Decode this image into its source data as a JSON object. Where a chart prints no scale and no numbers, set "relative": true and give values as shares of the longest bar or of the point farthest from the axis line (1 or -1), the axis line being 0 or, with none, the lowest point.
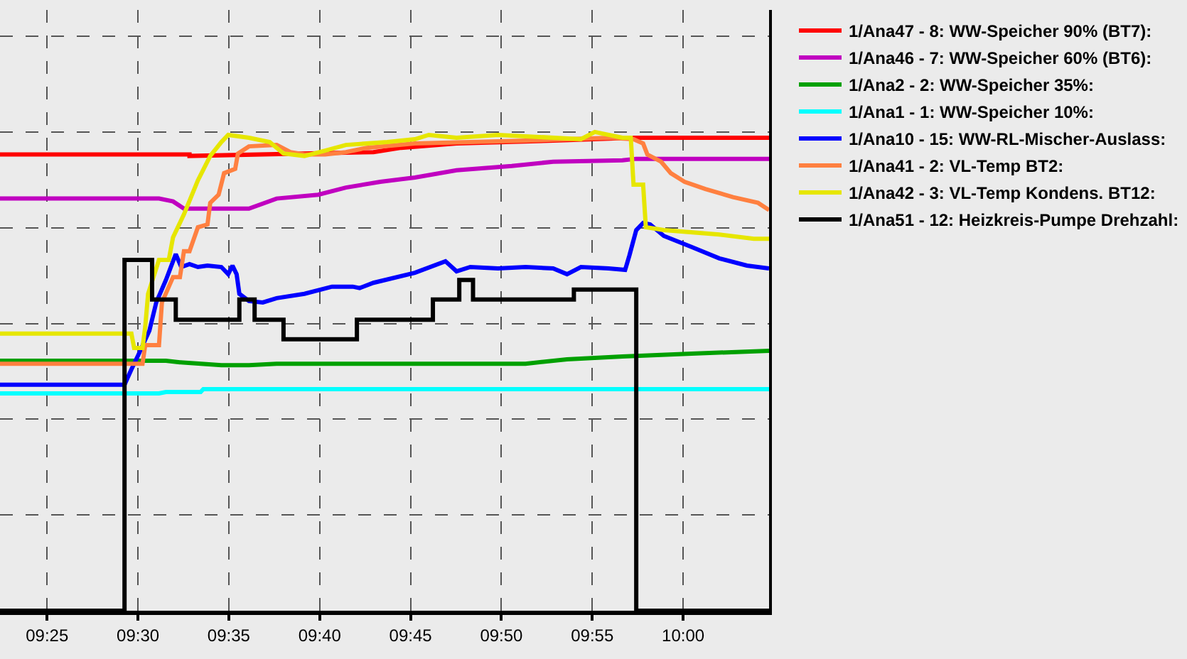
{
  "chart_data": {
    "type": "line",
    "relative": true,
    "grid": true,
    "legend": "top right",
    "xlim": [
      9.3735,
      10.0788
    ],
    "xticks": [
      {
        "value": 9.41667,
        "label": "09:25"
      },
      {
        "value": 9.5,
        "label": "09:30"
      },
      {
        "value": 9.58333,
        "label": "09:35"
      },
      {
        "value": 9.66667,
        "label": "09:40"
      },
      {
        "value": 9.75,
        "label": "09:45"
      },
      {
        "value": 9.83333,
        "label": "09:50"
      },
      {
        "value": 9.91667,
        "label": "09:55"
      },
      {
        "value": 10.0,
        "label": "10:00"
      }
    ],
    "series": [
      {
        "name": "1/Ana47 - 8: WW-Speicher 90% (BT7):",
        "color": "#ff0000",
        "x": [
          9.3735,
          9.5473,
          9.5473,
          9.716,
          9.7413,
          9.7922,
          9.8808,
          9.9545,
          10.0788
        ],
        "values": [
          0.953,
          0.953,
          0.95,
          0.958,
          0.967,
          0.976,
          0.982,
          0.988,
          0.988
        ]
      },
      {
        "name": "1/Ana46 - 7: WW-Speicher 60% (BT6):",
        "color": "#c000c0",
        "x": [
          9.3735,
          9.5193,
          9.5322,
          9.5422,
          9.6018,
          9.6272,
          9.6653,
          9.6907,
          9.7223,
          9.754,
          9.7922,
          9.8428,
          9.8808,
          9.9443,
          9.957,
          10.0788
        ],
        "values": [
          0.861,
          0.861,
          0.855,
          0.84,
          0.84,
          0.861,
          0.869,
          0.884,
          0.896,
          0.905,
          0.92,
          0.929,
          0.938,
          0.941,
          0.944,
          0.944
        ]
      },
      {
        "name": "1/Ana2 - 2: WW-Speicher 35%:",
        "color": "#00a000",
        "x": [
          9.3735,
          9.5257,
          9.5385,
          9.5765,
          9.6018,
          9.6272,
          9.8555,
          9.8935,
          9.9443,
          10.0077,
          10.0788
        ],
        "values": [
          0.522,
          0.522,
          0.519,
          0.513,
          0.513,
          0.516,
          0.516,
          0.525,
          0.531,
          0.537,
          0.543
        ]
      },
      {
        "name": "1/Ana1 - 1: WW-Speicher 10%:",
        "color": "#00ffff",
        "x": [
          9.3735,
          9.5193,
          9.5257,
          9.5575,
          9.56,
          10.0788
        ],
        "values": [
          0.454,
          0.454,
          0.457,
          0.457,
          0.463,
          0.463
        ]
      },
      {
        "name": "1/Ana10 - 15: WW-RL-Mischer-Auslass:",
        "color": "#0000ff",
        "x": [
          9.3735,
          9.4877,
          9.494,
          9.5003,
          9.5105,
          9.5168,
          9.5257,
          9.5347,
          9.5397,
          9.5473,
          9.555,
          9.5638,
          9.5765,
          9.5828,
          9.5867,
          9.5905,
          9.593,
          9.6018,
          9.6145,
          9.6272,
          9.6527,
          9.678,
          9.697,
          9.7033,
          9.716,
          9.754,
          9.782,
          9.7922,
          9.8048,
          9.8302,
          9.8555,
          9.8808,
          9.8935,
          9.9063,
          9.9317,
          9.9468,
          9.9507,
          9.957,
          9.9633,
          9.9697,
          9.9823,
          10.0077,
          10.0332,
          10.0585,
          10.0788
        ],
        "values": [
          0.472,
          0.472,
          0.504,
          0.534,
          0.585,
          0.644,
          0.691,
          0.745,
          0.718,
          0.724,
          0.718,
          0.721,
          0.718,
          0.703,
          0.721,
          0.703,
          0.662,
          0.647,
          0.644,
          0.653,
          0.662,
          0.677,
          0.677,
          0.674,
          0.685,
          0.706,
          0.73,
          0.709,
          0.718,
          0.715,
          0.718,
          0.715,
          0.703,
          0.718,
          0.715,
          0.712,
          0.742,
          0.795,
          0.81,
          0.807,
          0.783,
          0.76,
          0.736,
          0.721,
          0.715
        ]
      },
      {
        "name": "1/Ana41 - 2: VL-Temp BT2:",
        "color": "#ff8040",
        "x": [
          9.3735,
          9.5042,
          9.5067,
          9.5193,
          9.522,
          9.5322,
          9.5385,
          9.5422,
          9.5473,
          9.555,
          9.5638,
          9.5663,
          9.574,
          9.579,
          9.5892,
          9.5917,
          9.6018,
          9.6272,
          9.6398,
          9.6527,
          9.6717,
          9.6907,
          9.7097,
          9.754,
          9.8555,
          9.9317,
          9.9545,
          9.9633,
          9.9672,
          9.9798,
          9.9887,
          10.0013,
          10.0203,
          10.0458,
          10.0687,
          10.0788
        ],
        "values": [
          0.516,
          0.516,
          0.555,
          0.555,
          0.644,
          0.697,
          0.697,
          0.751,
          0.751,
          0.801,
          0.807,
          0.852,
          0.869,
          0.914,
          0.923,
          0.955,
          0.97,
          0.973,
          0.958,
          0.953,
          0.953,
          0.958,
          0.967,
          0.976,
          0.982,
          0.988,
          0.985,
          0.976,
          0.953,
          0.938,
          0.914,
          0.896,
          0.881,
          0.864,
          0.852,
          0.837
        ]
      },
      {
        "name": "1/Ana42 - 3: VL-Temp Kondens. BT12:",
        "color": "#e6e600",
        "x": [
          9.3735,
          9.494,
          9.4965,
          9.5042,
          9.5067,
          9.5093,
          9.5193,
          9.5283,
          9.5322,
          9.5422,
          9.555,
          9.5663,
          9.5765,
          9.5828,
          9.6018,
          9.6208,
          9.6335,
          9.6527,
          9.6717,
          9.6907,
          9.7287,
          9.754,
          9.7667,
          9.7922,
          9.8302,
          9.9063,
          9.919,
          9.9443,
          9.952,
          9.9545,
          9.9633,
          9.9658,
          9.9823,
          10.0332,
          10.0648,
          10.0788
        ],
        "values": [
          0.579,
          0.579,
          0.549,
          0.549,
          0.593,
          0.662,
          0.733,
          0.733,
          0.78,
          0.828,
          0.899,
          0.95,
          0.979,
          0.994,
          0.988,
          0.979,
          0.955,
          0.95,
          0.961,
          0.973,
          0.979,
          0.985,
          0.994,
          0.988,
          0.994,
          0.985,
          1.0,
          0.988,
          0.988,
          0.89,
          0.89,
          0.801,
          0.795,
          0.786,
          0.777,
          0.777
        ]
      },
      {
        "name": "1/Ana51 - 12: Heizkreis-Pumpe Drehzahl:",
        "color": "#000000",
        "type": "step",
        "x": [
          9.3735,
          9.4877,
          9.513,
          9.5347,
          9.593,
          9.607,
          9.6335,
          9.7008,
          9.7705,
          9.7947,
          9.8073,
          9.8998,
          9.957,
          10.0788
        ],
        "values": [
          0,
          0.733,
          0.65,
          0.608,
          0.65,
          0.608,
          0.567,
          0.608,
          0.65,
          0.691,
          0.65,
          0.671,
          0,
          0
        ]
      }
    ]
  }
}
